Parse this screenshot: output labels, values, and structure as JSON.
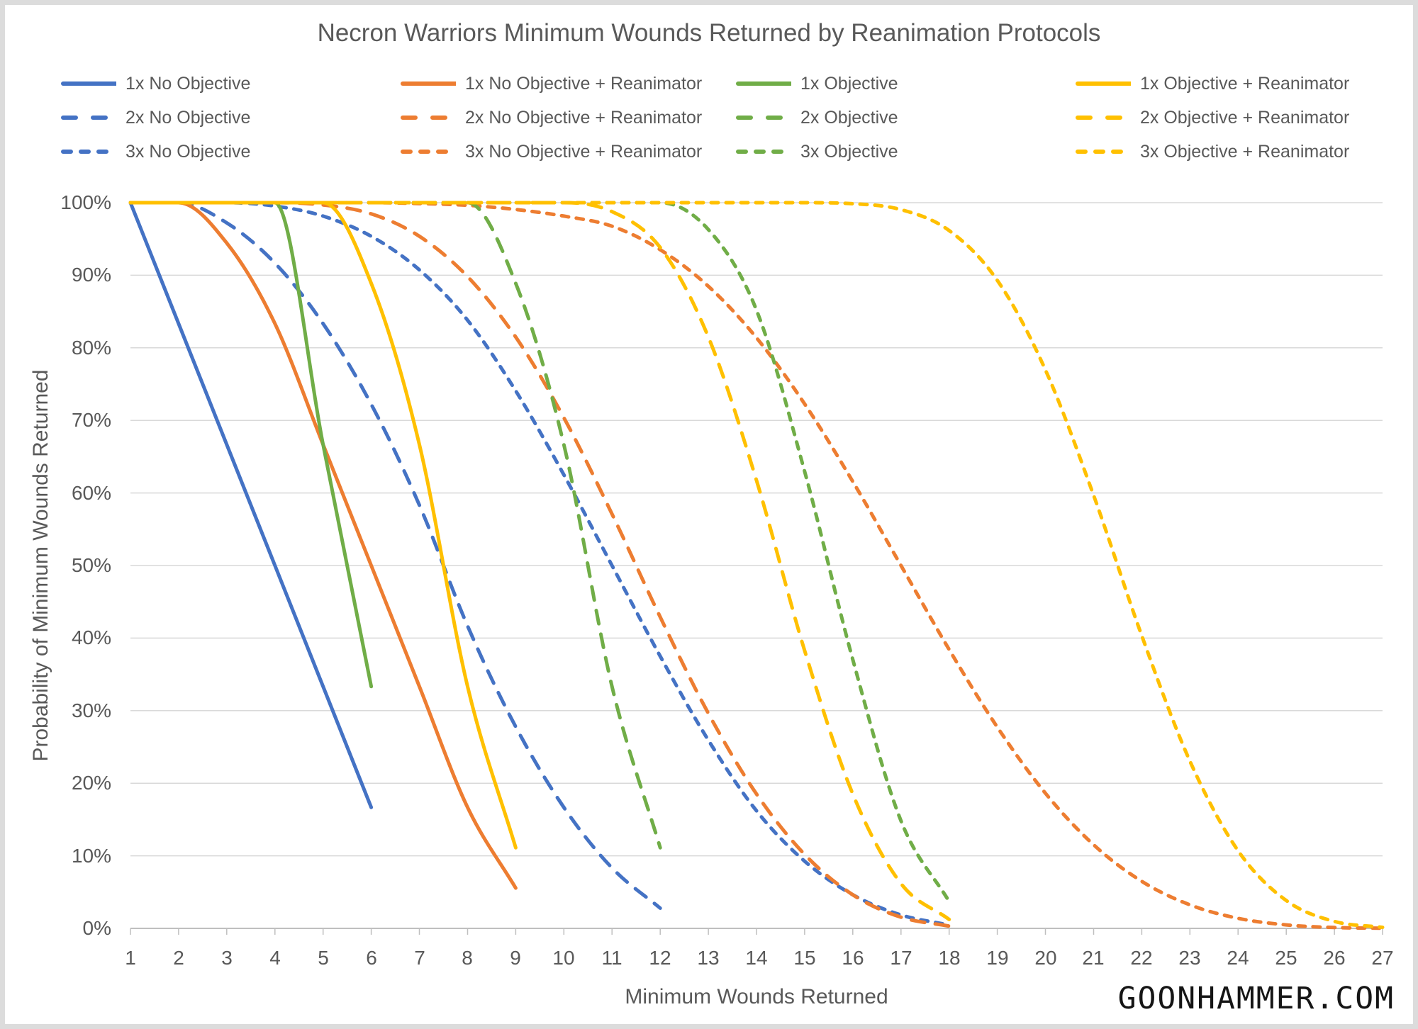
{
  "frame": {
    "background": "#ffffff",
    "border_color": "#dcdcdc"
  },
  "chart_data": {
    "type": "line",
    "title": "Necron Warriors Minimum Wounds Returned by Reanimation Protocols",
    "xlabel": "Minimum Wounds Returned",
    "ylabel": "Probability of Minimum Wounds Returned",
    "watermark": "GOONHAMMER.COM",
    "xlim": [
      1,
      27
    ],
    "ylim": [
      0,
      100
    ],
    "x_ticks": [
      1,
      2,
      3,
      4,
      5,
      6,
      7,
      8,
      9,
      10,
      11,
      12,
      13,
      14,
      15,
      16,
      17,
      18,
      19,
      20,
      21,
      22,
      23,
      24,
      25,
      26,
      27
    ],
    "y_ticks": [
      {
        "value": 0,
        "label": "0%"
      },
      {
        "value": 10,
        "label": "10%"
      },
      {
        "value": 20,
        "label": "20%"
      },
      {
        "value": 30,
        "label": "30%"
      },
      {
        "value": 40,
        "label": "40%"
      },
      {
        "value": 50,
        "label": "50%"
      },
      {
        "value": 60,
        "label": "60%"
      },
      {
        "value": 70,
        "label": "70%"
      },
      {
        "value": 80,
        "label": "80%"
      },
      {
        "value": 90,
        "label": "90%"
      },
      {
        "value": 100,
        "label": "100%"
      }
    ],
    "grid": "horizontal-only",
    "legend_position": "top-4-columns",
    "styles": {
      "grid_color": "#d9d9d9",
      "axis_color": "#bfbfbf",
      "text_color": "#595959",
      "watermark_color": "#151515",
      "series_stroke_width": 5
    },
    "series": [
      {
        "name": "1x No Objective",
        "color": "#4472C4",
        "dash": "solid",
        "points": [
          [
            1,
            100
          ],
          [
            2,
            83.33
          ],
          [
            3,
            66.67
          ],
          [
            4,
            50
          ],
          [
            5,
            33.33
          ],
          [
            6,
            16.67
          ]
        ]
      },
      {
        "name": "2x No Objective",
        "color": "#4472C4",
        "dash": "long-dash",
        "points": [
          [
            1,
            100
          ],
          [
            2,
            100
          ],
          [
            3,
            97.22
          ],
          [
            4,
            91.67
          ],
          [
            5,
            83.33
          ],
          [
            6,
            72.22
          ],
          [
            7,
            58.33
          ],
          [
            8,
            41.67
          ],
          [
            9,
            27.78
          ],
          [
            10,
            16.67
          ],
          [
            11,
            8.33
          ],
          [
            12,
            2.78
          ]
        ]
      },
      {
        "name": "3x No Objective",
        "color": "#4472C4",
        "dash": "short-dash",
        "points": [
          [
            1,
            100
          ],
          [
            2,
            100
          ],
          [
            3,
            100
          ],
          [
            4,
            99.54
          ],
          [
            5,
            98.15
          ],
          [
            6,
            95.37
          ],
          [
            7,
            90.74
          ],
          [
            8,
            83.8
          ],
          [
            9,
            74.07
          ],
          [
            10,
            62.5
          ],
          [
            11,
            50
          ],
          [
            12,
            37.5
          ],
          [
            13,
            25.93
          ],
          [
            14,
            16.2
          ],
          [
            15,
            9.26
          ],
          [
            16,
            4.63
          ],
          [
            17,
            1.85
          ],
          [
            18,
            0.46
          ]
        ]
      },
      {
        "name": "1x No Objective + Reanimator",
        "color": "#ED7D31",
        "dash": "solid",
        "points": [
          [
            1,
            100
          ],
          [
            2,
            100
          ],
          [
            3,
            94.44
          ],
          [
            4,
            83.33
          ],
          [
            5,
            66.67
          ],
          [
            6,
            50
          ],
          [
            7,
            33.33
          ],
          [
            8,
            16.67
          ],
          [
            9,
            5.56
          ]
        ]
      },
      {
        "name": "2x No Objective + Reanimator",
        "color": "#ED7D31",
        "dash": "long-dash",
        "points": [
          [
            1,
            100
          ],
          [
            2,
            100
          ],
          [
            3,
            100
          ],
          [
            4,
            100
          ],
          [
            5,
            99.69
          ],
          [
            6,
            98.46
          ],
          [
            7,
            95.37
          ],
          [
            8,
            89.81
          ],
          [
            9,
            81.48
          ],
          [
            10,
            70.37
          ],
          [
            11,
            57.1
          ],
          [
            12,
            42.9
          ],
          [
            13,
            29.63
          ],
          [
            14,
            18.52
          ],
          [
            15,
            10.19
          ],
          [
            16,
            4.63
          ],
          [
            17,
            1.54
          ],
          [
            18,
            0.31
          ]
        ]
      },
      {
        "name": "3x No Objective + Reanimator",
        "color": "#ED7D31",
        "dash": "short-dash",
        "points": [
          [
            1,
            100
          ],
          [
            2,
            100
          ],
          [
            3,
            100
          ],
          [
            4,
            100
          ],
          [
            5,
            100
          ],
          [
            6,
            100
          ],
          [
            7,
            99.88
          ],
          [
            8,
            99.64
          ],
          [
            9,
            99.06
          ],
          [
            10,
            98.15
          ],
          [
            11,
            96.76
          ],
          [
            12,
            93.52
          ],
          [
            13,
            88.48
          ],
          [
            14,
            81.38
          ],
          [
            15,
            72.27
          ],
          [
            16,
            61.57
          ],
          [
            17,
            50
          ],
          [
            18,
            38.43
          ],
          [
            19,
            27.73
          ],
          [
            20,
            18.62
          ],
          [
            21,
            11.52
          ],
          [
            22,
            6.48
          ],
          [
            23,
            3.24
          ],
          [
            24,
            1.39
          ],
          [
            25,
            0.48
          ],
          [
            26,
            0.12
          ],
          [
            27,
            0.02
          ]
        ]
      },
      {
        "name": "1x Objective",
        "color": "#70AD47",
        "dash": "solid",
        "points": [
          [
            1,
            100
          ],
          [
            2,
            100
          ],
          [
            3,
            100
          ],
          [
            4,
            100
          ],
          [
            5,
            66.67
          ],
          [
            6,
            33.33
          ]
        ]
      },
      {
        "name": "2x Objective",
        "color": "#70AD47",
        "dash": "long-dash",
        "points": [
          [
            1,
            100
          ],
          [
            2,
            100
          ],
          [
            3,
            100
          ],
          [
            4,
            100
          ],
          [
            5,
            100
          ],
          [
            6,
            100
          ],
          [
            7,
            100
          ],
          [
            8,
            100
          ],
          [
            9,
            88.89
          ],
          [
            10,
            66.67
          ],
          [
            11,
            33.33
          ],
          [
            12,
            11.11
          ]
        ]
      },
      {
        "name": "3x Objective",
        "color": "#70AD47",
        "dash": "short-dash",
        "points": [
          [
            1,
            100
          ],
          [
            2,
            100
          ],
          [
            3,
            100
          ],
          [
            4,
            100
          ],
          [
            5,
            100
          ],
          [
            6,
            100
          ],
          [
            7,
            100
          ],
          [
            8,
            100
          ],
          [
            9,
            100
          ],
          [
            10,
            100
          ],
          [
            11,
            100
          ],
          [
            12,
            100
          ],
          [
            13,
            96.3
          ],
          [
            14,
            85.19
          ],
          [
            15,
            62.96
          ],
          [
            16,
            37.04
          ],
          [
            17,
            14.81
          ],
          [
            18,
            3.7
          ]
        ]
      },
      {
        "name": "1x Objective + Reanimator",
        "color": "#FFC000",
        "dash": "solid",
        "points": [
          [
            1,
            100
          ],
          [
            2,
            100
          ],
          [
            3,
            100
          ],
          [
            4,
            100
          ],
          [
            5,
            100
          ],
          [
            6,
            88.89
          ],
          [
            7,
            66.67
          ],
          [
            8,
            33.33
          ],
          [
            9,
            11.11
          ]
        ]
      },
      {
        "name": "2x Objective + Reanimator",
        "color": "#FFC000",
        "dash": "long-dash",
        "points": [
          [
            1,
            100
          ],
          [
            2,
            100
          ],
          [
            3,
            100
          ],
          [
            4,
            100
          ],
          [
            5,
            100
          ],
          [
            6,
            100
          ],
          [
            7,
            100
          ],
          [
            8,
            100
          ],
          [
            9,
            100
          ],
          [
            10,
            100
          ],
          [
            11,
            98.77
          ],
          [
            12,
            93.83
          ],
          [
            13,
            81.48
          ],
          [
            14,
            61.73
          ],
          [
            15,
            38.27
          ],
          [
            16,
            18.52
          ],
          [
            17,
            6.17
          ],
          [
            18,
            1.23
          ]
        ]
      },
      {
        "name": "3x Objective + Reanimator",
        "color": "#FFC000",
        "dash": "short-dash",
        "points": [
          [
            1,
            100
          ],
          [
            2,
            100
          ],
          [
            3,
            100
          ],
          [
            4,
            100
          ],
          [
            5,
            100
          ],
          [
            6,
            100
          ],
          [
            7,
            100
          ],
          [
            8,
            100
          ],
          [
            9,
            100
          ],
          [
            10,
            100
          ],
          [
            11,
            100
          ],
          [
            12,
            100
          ],
          [
            13,
            100
          ],
          [
            14,
            100
          ],
          [
            15,
            100
          ],
          [
            16,
            99.86
          ],
          [
            17,
            99.04
          ],
          [
            18,
            96.16
          ],
          [
            19,
            89.3
          ],
          [
            20,
            76.95
          ],
          [
            21,
            59.67
          ],
          [
            22,
            40.33
          ],
          [
            23,
            23.05
          ],
          [
            24,
            10.7
          ],
          [
            25,
            3.84
          ],
          [
            26,
            0.96
          ],
          [
            27,
            0.14
          ]
        ]
      }
    ]
  }
}
